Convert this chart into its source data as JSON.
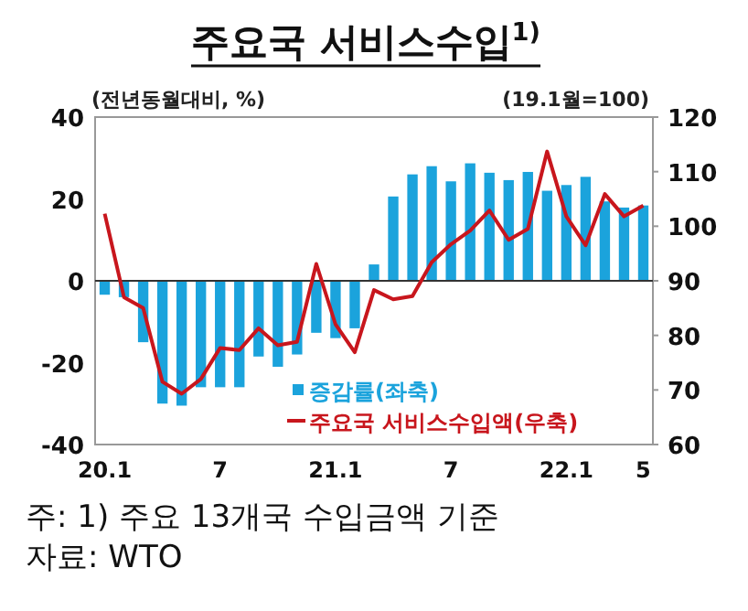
{
  "chart_data": {
    "type": "bar",
    "title": "주요국 서비스수입$^{1)}$",
    "ylabel": "(전년동월대비, %)",
    "y2label": "(19.1월=100)",
    "categories": [
      "20.1",
      null,
      null,
      null,
      null,
      null,
      "7",
      null,
      null,
      null,
      null,
      null,
      "21.1",
      null,
      null,
      null,
      null,
      null,
      "7",
      null,
      null,
      null,
      null,
      null,
      "22.1",
      null,
      null,
      null,
      "5"
    ],
    "series": [
      {
        "name": "증감률(좌축)",
        "color": "#1ba3dc",
        "values": [
          -3.4,
          -4,
          -15,
          -30,
          -30.5,
          -26,
          -26,
          -26,
          -18.5,
          -21,
          -18,
          -12.7,
          -14,
          -11.6,
          4,
          20.6,
          26,
          28,
          24.3,
          28.7,
          26.4,
          24.6,
          26.6,
          22,
          23.4,
          25.4,
          19.4,
          17.9,
          18.4
        ]
      },
      {
        "type": "line",
        "axis": "y2",
        "name": "주요국 서비스수입액(우축)",
        "color": "#c8161d",
        "values": [
          102.3,
          87,
          85,
          71.5,
          69.3,
          72,
          77.7,
          77.3,
          81.3,
          78.2,
          78.8,
          93.1,
          82,
          76.9,
          88.3,
          86.6,
          87.2,
          93.4,
          96.7,
          99.2,
          102.9,
          97.5,
          99.5,
          113.7,
          101.8,
          96.5,
          105.9,
          101.8,
          103.8
        ]
      }
    ],
    "ylim": [
      -40,
      40
    ],
    "yticks": [
      -40,
      -20,
      0,
      20,
      40
    ],
    "y2lim": [
      60,
      120
    ],
    "y2ticks": [
      60,
      70,
      80,
      90,
      100,
      110,
      120
    ],
    "legend": "bottom right",
    "annotations": [
      "주: 1) 주요 13개국 수입금액 기준",
      "자료: WTO"
    ]
  }
}
